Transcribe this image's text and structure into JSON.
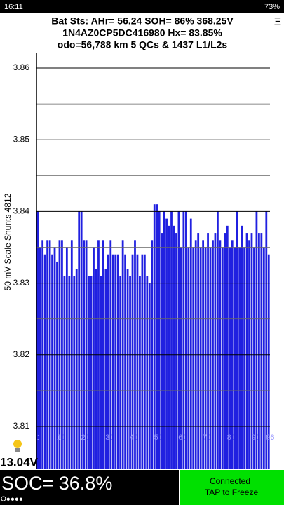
{
  "status_bar": {
    "time": "16:11",
    "battery": "73%"
  },
  "header": {
    "line1": "Bat Sts:  AHr= 56.24  SOH= 86%   368.25V",
    "line2": "1N4AZ0CP5DC416980   Hx= 83.85%",
    "line3": "odo=56,788 km  5 QCs  &  1437 L1/L2s",
    "menu": "Ξ"
  },
  "chart_data": {
    "type": "bar",
    "y_label": "50 mV Scale   Shunts 4812",
    "color": "#2020e0",
    "categories": [
      "1",
      null,
      null,
      null,
      null,
      null,
      null,
      null,
      null,
      "10",
      null,
      null,
      null,
      null,
      null,
      null,
      null,
      null,
      null,
      "20",
      null,
      null,
      null,
      null,
      null,
      null,
      null,
      null,
      null,
      "30",
      null,
      null,
      null,
      null,
      null,
      null,
      null,
      null,
      null,
      "40",
      null,
      null,
      null,
      null,
      null,
      null,
      null,
      null,
      null,
      "50",
      null,
      null,
      null,
      null,
      null,
      null,
      null,
      null,
      null,
      "60",
      null,
      null,
      null,
      null,
      null,
      null,
      null,
      null,
      null,
      "70",
      null,
      null,
      null,
      null,
      null,
      null,
      null,
      null,
      null,
      "80",
      null,
      null,
      null,
      null,
      null,
      null,
      null,
      null,
      null,
      "90",
      null,
      null,
      null,
      null,
      null,
      "96"
    ],
    "values": [
      3.84,
      3.835,
      3.836,
      3.834,
      3.836,
      3.836,
      3.834,
      3.835,
      3.833,
      3.836,
      3.836,
      3.831,
      3.835,
      3.831,
      3.836,
      3.831,
      3.832,
      3.84,
      3.84,
      3.836,
      3.836,
      3.831,
      3.831,
      3.835,
      3.832,
      3.836,
      3.831,
      3.836,
      3.832,
      3.834,
      3.836,
      3.834,
      3.834,
      3.834,
      3.831,
      3.836,
      3.834,
      3.832,
      3.831,
      3.834,
      3.836,
      3.834,
      3.831,
      3.834,
      3.834,
      3.831,
      3.83,
      3.836,
      3.841,
      3.841,
      3.84,
      3.837,
      3.84,
      3.839,
      3.838,
      3.84,
      3.838,
      3.837,
      3.84,
      3.835,
      3.84,
      3.84,
      3.835,
      3.839,
      3.835,
      3.836,
      3.837,
      3.835,
      3.836,
      3.835,
      3.837,
      3.835,
      3.836,
      3.837,
      3.84,
      3.836,
      3.835,
      3.837,
      3.838,
      3.835,
      3.836,
      3.835,
      3.84,
      3.835,
      3.838,
      3.835,
      3.837,
      3.836,
      3.837,
      3.835,
      3.84,
      3.837,
      3.837,
      3.835,
      3.84,
      3.834
    ],
    "ylim": [
      3.81,
      3.862
    ],
    "yticks": [
      3.81,
      3.82,
      3.83,
      3.84,
      3.85,
      3.86
    ],
    "minor_grid": [
      3.815,
      3.825,
      3.835,
      3.845,
      3.855
    ],
    "grid": true
  },
  "footer": {
    "voltage": "13.04V",
    "soc": "SOC= 36.8%",
    "dots": "O●●●●",
    "status": "Connected",
    "action": "TAP to Freeze"
  }
}
